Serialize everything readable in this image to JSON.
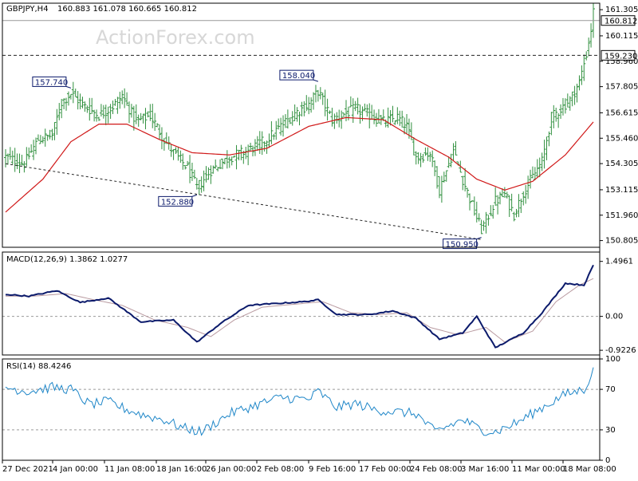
{
  "colors": {
    "bars": "#2f8f3d",
    "ma": "#d01818",
    "macd": "#0b1a6b",
    "signal": "#b99aa0",
    "rsi": "#1e86c8",
    "grid": "#9a9a9a",
    "label_border": "#0b1a6b",
    "watermark": "#d7d7d7"
  },
  "header": {
    "symbol": "GBPJPY,H4",
    "ohlc": "160.883 161.078 160.665 160.812",
    "watermark": "ActionForex.com"
  },
  "price_panel": {
    "ylim": [
      150.5,
      161.6
    ],
    "tick_labels": [
      "161.305",
      "160.115",
      "158.960",
      "157.805",
      "156.615",
      "155.460",
      "154.305",
      "153.115",
      "151.960",
      "150.805"
    ],
    "current_price": "160.812",
    "level_line": "159.230",
    "annotations": [
      {
        "label": "157.740",
        "bar": 28
      },
      {
        "label": "158.040",
        "bar": 134
      },
      {
        "label": "152.880",
        "bar": 82
      },
      {
        "label": "150.950",
        "bar": 204
      }
    ]
  },
  "macd_panel": {
    "title": "MACD(12,26,9) 1.3862 1.0277",
    "ylim": [
      -1.05,
      1.75
    ],
    "tick_labels": [
      "1.4961",
      "0.00",
      "-0.9226"
    ]
  },
  "rsi_panel": {
    "title": "RSI(14) 88.4246",
    "ylim": [
      0,
      100
    ],
    "tick_labels": [
      "100",
      "70",
      "30",
      "0"
    ]
  },
  "x_axis": {
    "labels": [
      "27 Dec 2021",
      "4 Jan 00:00",
      "11 Jan 08:00",
      "18 Jan 16:00",
      "26 Jan 00:00",
      "2 Feb 08:00",
      "9 Feb 16:00",
      "17 Feb 00:00",
      "24 Feb 08:00",
      "3 Mar 16:00",
      "11 Mar 00:00",
      "18 Mar 08:00"
    ]
  },
  "chart_data": {
    "type": "line",
    "title": "GBPJPY,H4",
    "series": [
      {
        "name": "GBPJPY,H4",
        "anchors": [
          [
            0,
            154.6
          ],
          [
            8,
            154.3
          ],
          [
            14,
            155.4
          ],
          [
            20,
            155.6
          ],
          [
            24,
            157.1
          ],
          [
            28,
            157.5
          ],
          [
            34,
            156.9
          ],
          [
            40,
            156.5
          ],
          [
            46,
            156.9
          ],
          [
            50,
            157.4
          ],
          [
            56,
            156.2
          ],
          [
            62,
            156.5
          ],
          [
            68,
            155.4
          ],
          [
            72,
            154.8
          ],
          [
            78,
            154.1
          ],
          [
            82,
            153.2
          ],
          [
            88,
            154.0
          ],
          [
            96,
            154.6
          ],
          [
            104,
            154.9
          ],
          [
            112,
            155.4
          ],
          [
            118,
            156.0
          ],
          [
            124,
            156.6
          ],
          [
            130,
            157.0
          ],
          [
            134,
            157.6
          ],
          [
            140,
            156.3
          ],
          [
            146,
            156.6
          ],
          [
            150,
            156.8
          ],
          [
            156,
            156.5
          ],
          [
            162,
            156.2
          ],
          [
            168,
            156.4
          ],
          [
            172,
            156.0
          ],
          [
            176,
            154.6
          ],
          [
            182,
            154.8
          ],
          [
            186,
            153.1
          ],
          [
            192,
            154.9
          ],
          [
            196,
            153.6
          ],
          [
            200,
            152.4
          ],
          [
            204,
            151.3
          ],
          [
            210,
            152.6
          ],
          [
            214,
            152.9
          ],
          [
            218,
            152.0
          ],
          [
            222,
            153.0
          ],
          [
            226,
            153.7
          ],
          [
            230,
            154.4
          ],
          [
            234,
            156.4
          ],
          [
            238,
            156.8
          ],
          [
            242,
            157.2
          ],
          [
            246,
            158.0
          ],
          [
            249,
            159.3
          ],
          [
            251,
            160.4
          ],
          [
            252,
            161.2
          ]
        ]
      },
      {
        "name": "MA",
        "anchors": [
          [
            0,
            152.1
          ],
          [
            16,
            153.6
          ],
          [
            28,
            155.3
          ],
          [
            40,
            156.1
          ],
          [
            52,
            156.1
          ],
          [
            66,
            155.4
          ],
          [
            80,
            154.8
          ],
          [
            96,
            154.7
          ],
          [
            112,
            155.0
          ],
          [
            130,
            156.0
          ],
          [
            146,
            156.4
          ],
          [
            162,
            156.3
          ],
          [
            176,
            155.4
          ],
          [
            190,
            154.6
          ],
          [
            202,
            153.6
          ],
          [
            214,
            153.1
          ],
          [
            226,
            153.5
          ],
          [
            240,
            154.7
          ],
          [
            252,
            156.2
          ]
        ]
      },
      {
        "name": "MACD(12,26,9)",
        "anchors": [
          [
            0,
            0.6
          ],
          [
            10,
            0.55
          ],
          [
            22,
            0.7
          ],
          [
            32,
            0.38
          ],
          [
            44,
            0.5
          ],
          [
            58,
            -0.15
          ],
          [
            72,
            -0.1
          ],
          [
            82,
            -0.7
          ],
          [
            92,
            -0.2
          ],
          [
            104,
            0.3
          ],
          [
            116,
            0.35
          ],
          [
            128,
            0.4
          ],
          [
            134,
            0.45
          ],
          [
            142,
            0.05
          ],
          [
            156,
            0.05
          ],
          [
            166,
            0.15
          ],
          [
            176,
            -0.05
          ],
          [
            186,
            -0.62
          ],
          [
            196,
            -0.45
          ],
          [
            202,
            0.0
          ],
          [
            210,
            -0.85
          ],
          [
            222,
            -0.45
          ],
          [
            230,
            0.1
          ],
          [
            240,
            0.9
          ],
          [
            248,
            0.85
          ],
          [
            252,
            1.39
          ]
        ]
      },
      {
        "name": "signal",
        "anchors": [
          [
            0,
            0.55
          ],
          [
            12,
            0.55
          ],
          [
            26,
            0.62
          ],
          [
            38,
            0.45
          ],
          [
            50,
            0.3
          ],
          [
            64,
            -0.1
          ],
          [
            78,
            -0.3
          ],
          [
            88,
            -0.55
          ],
          [
            98,
            -0.1
          ],
          [
            110,
            0.25
          ],
          [
            122,
            0.32
          ],
          [
            136,
            0.4
          ],
          [
            148,
            0.1
          ],
          [
            160,
            0.05
          ],
          [
            172,
            0.1
          ],
          [
            182,
            -0.3
          ],
          [
            194,
            -0.5
          ],
          [
            206,
            -0.3
          ],
          [
            214,
            -0.7
          ],
          [
            226,
            -0.4
          ],
          [
            236,
            0.4
          ],
          [
            246,
            0.85
          ],
          [
            252,
            1.03
          ]
        ]
      },
      {
        "name": "RSI(14)",
        "anchors": [
          [
            0,
            72
          ],
          [
            10,
            68
          ],
          [
            20,
            72
          ],
          [
            28,
            70
          ],
          [
            36,
            55
          ],
          [
            44,
            58
          ],
          [
            52,
            50
          ],
          [
            60,
            44
          ],
          [
            68,
            40
          ],
          [
            76,
            32
          ],
          [
            84,
            28
          ],
          [
            96,
            46
          ],
          [
            108,
            55
          ],
          [
            118,
            62
          ],
          [
            130,
            60
          ],
          [
            134,
            68
          ],
          [
            142,
            52
          ],
          [
            150,
            56
          ],
          [
            158,
            50
          ],
          [
            166,
            48
          ],
          [
            176,
            46
          ],
          [
            184,
            28
          ],
          [
            196,
            40
          ],
          [
            204,
            30
          ],
          [
            210,
            28
          ],
          [
            220,
            38
          ],
          [
            230,
            52
          ],
          [
            240,
            65
          ],
          [
            248,
            70
          ],
          [
            252,
            88
          ]
        ]
      }
    ]
  }
}
